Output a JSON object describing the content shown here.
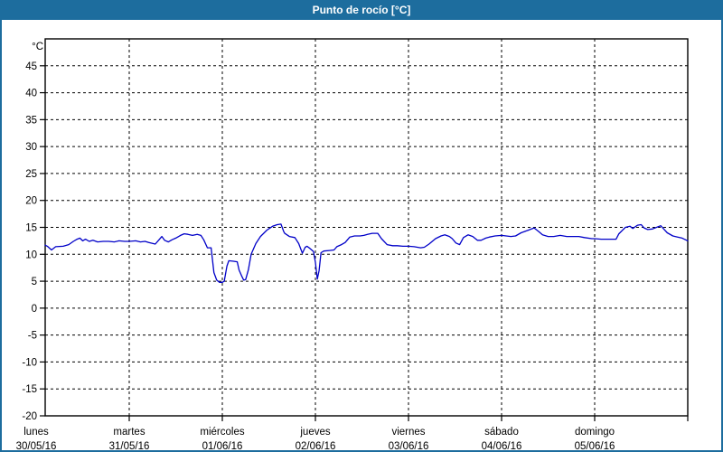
{
  "title": "Punto de rocío [°C]",
  "colors": {
    "titlebar_bg": "#1d6d9e",
    "frame_border": "#1d6d9e",
    "title_text": "#ffffff",
    "plot_bg": "#ffffff",
    "page_bg": "#ffffff",
    "grid": "#000000",
    "axis": "#000000",
    "tick_text": "#000000",
    "line": "#0000c8"
  },
  "chart_data": {
    "type": "line",
    "title": "Punto de rocío [°C]",
    "ylabel": "°C",
    "xlabel": "",
    "ylim": [
      -20,
      50
    ],
    "ytick_step": 5,
    "ytick_labels": [
      45,
      40,
      35,
      30,
      25,
      20,
      15,
      10,
      5,
      0,
      -5,
      -10,
      -15,
      -20
    ],
    "grid": "dashed",
    "legend_position": "none",
    "x_days": [
      {
        "name": "lunes",
        "date": "30/05/16"
      },
      {
        "name": "martes",
        "date": "31/05/16"
      },
      {
        "name": "miércoles",
        "date": "01/06/16"
      },
      {
        "name": "jueves",
        "date": "02/06/16"
      },
      {
        "name": "viernes",
        "date": "03/06/16"
      },
      {
        "name": "sábado",
        "date": "04/06/16"
      },
      {
        "name": "domingo",
        "date": "05/06/16"
      }
    ],
    "x_unit": "days_from_monday_00h",
    "x_range": [
      0,
      7
    ],
    "series": [
      {
        "name": "Punto de rocío",
        "color": "#0000c8",
        "points": [
          [
            0.097,
            11.7
          ],
          [
            0.12,
            11.5
          ],
          [
            0.165,
            10.8
          ],
          [
            0.21,
            11.4
          ],
          [
            0.29,
            11.5
          ],
          [
            0.35,
            11.8
          ],
          [
            0.4,
            12.4
          ],
          [
            0.44,
            12.8
          ],
          [
            0.47,
            13.0
          ],
          [
            0.5,
            12.5
          ],
          [
            0.53,
            12.8
          ],
          [
            0.57,
            12.4
          ],
          [
            0.61,
            12.6
          ],
          [
            0.66,
            12.3
          ],
          [
            0.72,
            12.4
          ],
          [
            0.78,
            12.4
          ],
          [
            0.84,
            12.3
          ],
          [
            0.89,
            12.5
          ],
          [
            0.95,
            12.4
          ],
          [
            1.0,
            12.4
          ],
          [
            1.07,
            12.5
          ],
          [
            1.12,
            12.3
          ],
          [
            1.17,
            12.4
          ],
          [
            1.21,
            12.2
          ],
          [
            1.28,
            11.9
          ],
          [
            1.32,
            12.7
          ],
          [
            1.35,
            13.3
          ],
          [
            1.38,
            12.6
          ],
          [
            1.42,
            12.3
          ],
          [
            1.46,
            12.7
          ],
          [
            1.5,
            13.0
          ],
          [
            1.55,
            13.5
          ],
          [
            1.59,
            13.8
          ],
          [
            1.63,
            13.7
          ],
          [
            1.68,
            13.5
          ],
          [
            1.73,
            13.7
          ],
          [
            1.77,
            13.5
          ],
          [
            1.8,
            12.7
          ],
          [
            1.84,
            11.2
          ],
          [
            1.88,
            11.2
          ],
          [
            1.91,
            6.6
          ],
          [
            1.94,
            5.2
          ],
          [
            1.97,
            4.8
          ],
          [
            2.0,
            4.8
          ],
          [
            2.02,
            5.0
          ],
          [
            2.05,
            7.8
          ],
          [
            2.07,
            8.8
          ],
          [
            2.12,
            8.7
          ],
          [
            2.16,
            8.6
          ],
          [
            2.18,
            7.1
          ],
          [
            2.21,
            5.9
          ],
          [
            2.23,
            5.2
          ],
          [
            2.25,
            5.3
          ],
          [
            2.28,
            7.1
          ],
          [
            2.31,
            10.0
          ],
          [
            2.36,
            12.0
          ],
          [
            2.41,
            13.3
          ],
          [
            2.48,
            14.5
          ],
          [
            2.54,
            15.2
          ],
          [
            2.59,
            15.5
          ],
          [
            2.63,
            15.6
          ],
          [
            2.66,
            14.2
          ],
          [
            2.67,
            13.9
          ],
          [
            2.72,
            13.3
          ],
          [
            2.78,
            13.1
          ],
          [
            2.82,
            12.0
          ],
          [
            2.86,
            10.2
          ],
          [
            2.89,
            11.3
          ],
          [
            2.91,
            11.5
          ],
          [
            2.94,
            11.1
          ],
          [
            2.98,
            10.5
          ],
          [
            3.0,
            8.5
          ],
          [
            3.02,
            5.4
          ],
          [
            3.04,
            7.0
          ],
          [
            3.06,
            10.3
          ],
          [
            3.09,
            10.6
          ],
          [
            3.15,
            10.7
          ],
          [
            3.2,
            10.8
          ],
          [
            3.23,
            11.4
          ],
          [
            3.28,
            11.8
          ],
          [
            3.32,
            12.2
          ],
          [
            3.37,
            13.2
          ],
          [
            3.42,
            13.4
          ],
          [
            3.48,
            13.4
          ],
          [
            3.52,
            13.5
          ],
          [
            3.56,
            13.7
          ],
          [
            3.61,
            13.9
          ],
          [
            3.67,
            13.9
          ],
          [
            3.71,
            12.9
          ],
          [
            3.77,
            11.8
          ],
          [
            3.83,
            11.6
          ],
          [
            3.88,
            11.6
          ],
          [
            3.94,
            11.5
          ],
          [
            4.0,
            11.5
          ],
          [
            4.06,
            11.4
          ],
          [
            4.13,
            11.2
          ],
          [
            4.17,
            11.3
          ],
          [
            4.22,
            11.9
          ],
          [
            4.29,
            12.9
          ],
          [
            4.35,
            13.4
          ],
          [
            4.39,
            13.6
          ],
          [
            4.44,
            13.3
          ],
          [
            4.47,
            12.9
          ],
          [
            4.51,
            12.1
          ],
          [
            4.55,
            11.8
          ],
          [
            4.59,
            13.1
          ],
          [
            4.64,
            13.6
          ],
          [
            4.69,
            13.3
          ],
          [
            4.74,
            12.6
          ],
          [
            4.78,
            12.6
          ],
          [
            4.83,
            13.0
          ],
          [
            4.87,
            13.2
          ],
          [
            4.93,
            13.4
          ],
          [
            5.0,
            13.5
          ],
          [
            5.05,
            13.4
          ],
          [
            5.1,
            13.3
          ],
          [
            5.15,
            13.4
          ],
          [
            5.21,
            14.0
          ],
          [
            5.29,
            14.5
          ],
          [
            5.35,
            14.9
          ],
          [
            5.4,
            14.2
          ],
          [
            5.44,
            13.6
          ],
          [
            5.5,
            13.3
          ],
          [
            5.56,
            13.3
          ],
          [
            5.63,
            13.5
          ],
          [
            5.7,
            13.3
          ],
          [
            5.76,
            13.3
          ],
          [
            5.83,
            13.3
          ],
          [
            5.89,
            13.1
          ],
          [
            5.97,
            12.9
          ],
          [
            6.0,
            12.9
          ],
          [
            6.07,
            12.8
          ],
          [
            6.17,
            12.8
          ],
          [
            6.23,
            12.8
          ],
          [
            6.26,
            13.8
          ],
          [
            6.33,
            15.0
          ],
          [
            6.38,
            15.2
          ],
          [
            6.41,
            14.8
          ],
          [
            6.46,
            15.4
          ],
          [
            6.5,
            15.5
          ],
          [
            6.53,
            14.9
          ],
          [
            6.57,
            14.6
          ],
          [
            6.62,
            14.7
          ],
          [
            6.68,
            15.1
          ],
          [
            6.71,
            15.3
          ],
          [
            6.78,
            14.0
          ],
          [
            6.84,
            13.4
          ],
          [
            6.89,
            13.2
          ],
          [
            6.94,
            13.0
          ],
          [
            7.0,
            12.5
          ]
        ]
      }
    ]
  }
}
